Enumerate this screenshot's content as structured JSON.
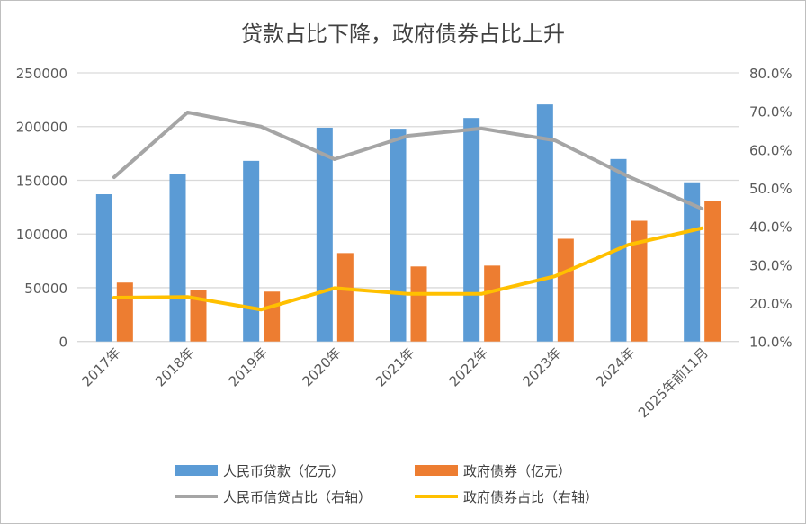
{
  "chart_data": {
    "type": "bar+line",
    "title": "贷款占比下降，政府债券占比上升",
    "categories": [
      "2017年",
      "2018年",
      "2019年",
      "2020年",
      "2021年",
      "2022年",
      "2023年",
      "2024年",
      "2025年前11月"
    ],
    "y_left": {
      "min": 0,
      "max": 250000,
      "ticks": [
        "0",
        "50000",
        "100000",
        "150000",
        "200000",
        "250000"
      ]
    },
    "y_right": {
      "min": 10,
      "max": 80,
      "ticks": [
        "10.0%",
        "20.0%",
        "30.0%",
        "40.0%",
        "50.0%",
        "60.0%",
        "70.0%",
        "80.0%"
      ]
    },
    "grid": true,
    "legend_position": "bottom",
    "series": [
      {
        "name": "人民币贷款（亿元）",
        "type": "bar",
        "axis": "left",
        "color": "#5b9bd5",
        "values": [
          137000,
          155600,
          168100,
          199000,
          198000,
          208000,
          220600,
          169800,
          148100
        ]
      },
      {
        "name": "政府债券（亿元）",
        "type": "bar",
        "axis": "left",
        "color": "#ed7d31",
        "values": [
          54800,
          48100,
          46400,
          82300,
          69800,
          70600,
          95600,
          112300,
          130600
        ]
      },
      {
        "name": "人民币信贷占比（右轴）",
        "type": "line",
        "axis": "right",
        "color": "#a5a5a5",
        "values": [
          52.8,
          69.7,
          66.0,
          57.5,
          63.6,
          65.5,
          62.4,
          53.0,
          44.6
        ]
      },
      {
        "name": "政府债券占比（右轴）",
        "type": "line",
        "axis": "right",
        "color": "#ffc000",
        "values": [
          21.4,
          21.6,
          18.3,
          23.9,
          22.4,
          22.4,
          27.0,
          35.2,
          39.5
        ]
      }
    ]
  }
}
